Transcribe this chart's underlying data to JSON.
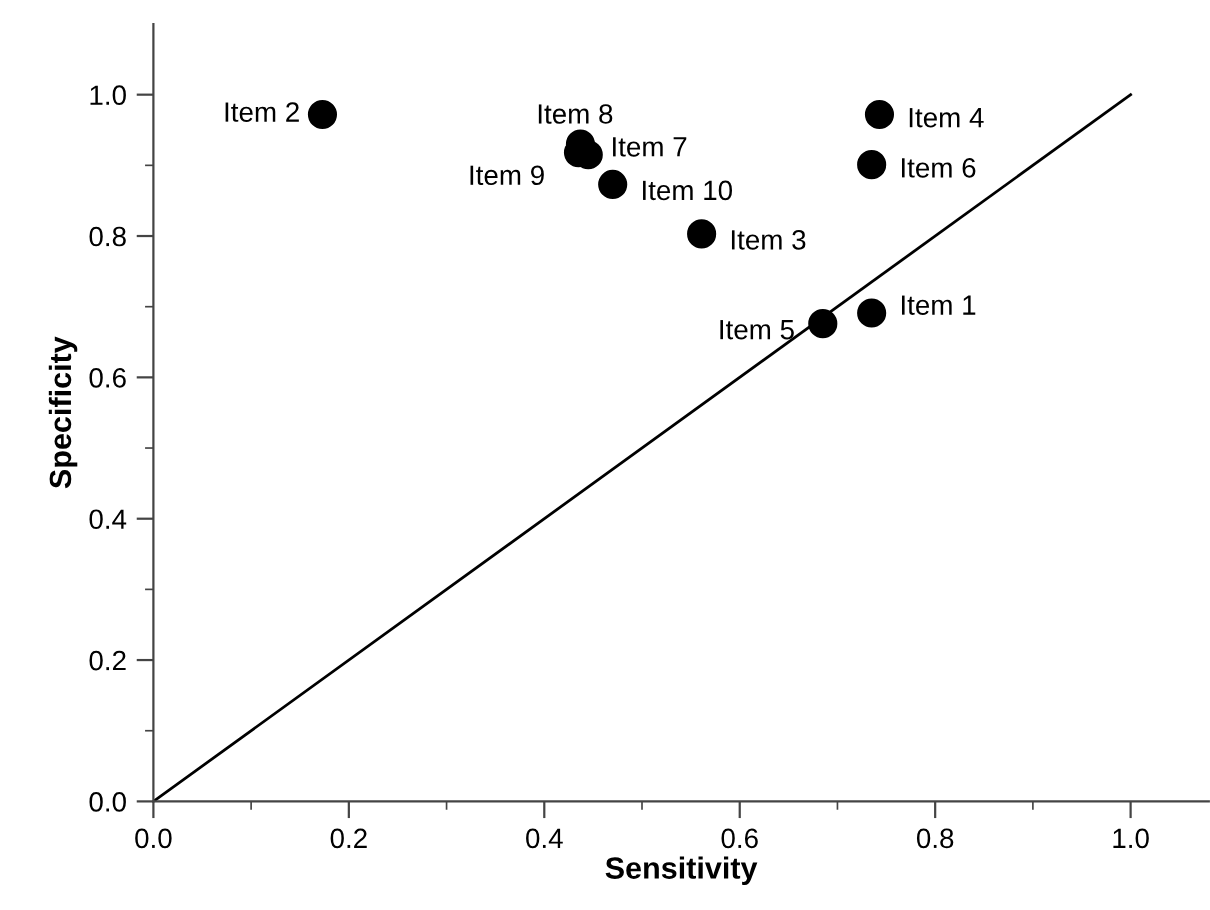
{
  "chart_data": {
    "type": "scatter",
    "xlabel": "Sensitivity",
    "ylabel": "Specificity",
    "xlim": [
      0,
      1.08
    ],
    "ylim": [
      0,
      1.1
    ],
    "xticks": [
      {
        "value": 0,
        "label": "0.0"
      },
      {
        "value": 0.1,
        "label": null
      },
      {
        "value": 0.2,
        "label": "0.2"
      },
      {
        "value": 0.3,
        "label": null
      },
      {
        "value": 0.4,
        "label": "0.4"
      },
      {
        "value": 0.5,
        "label": null
      },
      {
        "value": 0.6,
        "label": "0.6"
      },
      {
        "value": 0.7,
        "label": null
      },
      {
        "value": 0.8,
        "label": "0.8"
      },
      {
        "value": 0.9,
        "label": null
      },
      {
        "value": 1.0,
        "label": "1.0"
      }
    ],
    "yticks": [
      {
        "value": 0,
        "label": "0.0"
      },
      {
        "value": 0.1,
        "label": null
      },
      {
        "value": 0.2,
        "label": "0.2"
      },
      {
        "value": 0.3,
        "label": null
      },
      {
        "value": 0.4,
        "label": "0.4"
      },
      {
        "value": 0.5,
        "label": null
      },
      {
        "value": 0.6,
        "label": "0.6"
      },
      {
        "value": 0.7,
        "label": null
      },
      {
        "value": 0.8,
        "label": "0.8"
      },
      {
        "value": 0.9,
        "label": null
      },
      {
        "value": 1.0,
        "label": "1.0"
      }
    ],
    "grid": false,
    "legend": false,
    "marker": "circle",
    "series": [
      {
        "color": "#000000",
        "x": [
          0.735,
          0.173,
          0.561,
          0.743,
          0.685,
          0.735,
          0.445,
          0.437,
          0.435,
          0.47
        ],
        "values": [
          0.691,
          0.972,
          0.803,
          0.972,
          0.676,
          0.901,
          0.915,
          0.93,
          0.918,
          0.873
        ]
      },
      {
        "type": "line",
        "color": "#000000",
        "line_style": "solid",
        "marker": "none",
        "x": [
          0,
          1
        ],
        "values": [
          0,
          1
        ]
      }
    ],
    "annotations": [
      {
        "text": "Item 1",
        "x": 0.735,
        "y": 0.691
      },
      {
        "text": "Item 2",
        "x": 0.173,
        "y": 0.972
      },
      {
        "text": "Item 3",
        "x": 0.561,
        "y": 0.803
      },
      {
        "text": "Item 4",
        "x": 0.743,
        "y": 0.972
      },
      {
        "text": "Item 5",
        "x": 0.685,
        "y": 0.676
      },
      {
        "text": "Item 6",
        "x": 0.735,
        "y": 0.901
      },
      {
        "text": "Item 7",
        "x": 0.445,
        "y": 0.915
      },
      {
        "text": "Item 8",
        "x": 0.437,
        "y": 0.93
      },
      {
        "text": "Item 9",
        "x": 0.435,
        "y": 0.918
      },
      {
        "text": "Item 10",
        "x": 0.47,
        "y": 0.873
      }
    ]
  }
}
